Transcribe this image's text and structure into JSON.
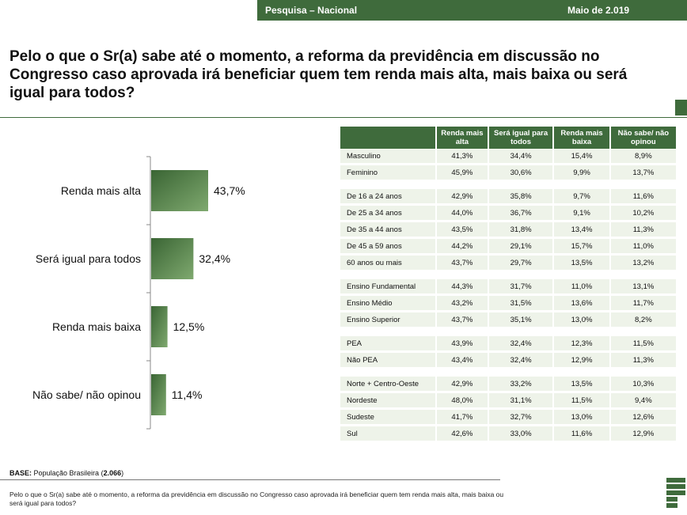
{
  "header": {
    "left": "Pesquisa – Nacional",
    "right": "Maio de 2.019"
  },
  "question": "Pelo o que o Sr(a) sabe até o momento, a reforma da previdência em discussão no Congresso caso aprovada irá beneficiar quem tem renda mais alta, mais baixa ou será igual para todos?",
  "base": {
    "label": "BASE:",
    "text": " População Brasileira (",
    "n": "2.066",
    "close": ")"
  },
  "footnote": "Pelo o que o Sr(a) sabe até o momento, a reforma da previdência em discussão no Congresso caso aprovada irá beneficiar quem tem renda mais alta, mais baixa ou será igual para todos?",
  "colors": {
    "accent": "#3f6b3c",
    "bar_dark": "#3a6534",
    "bar_light": "#7fa96f"
  },
  "chart_data": {
    "type": "bar",
    "orientation": "horizontal",
    "categories": [
      "Renda mais alta",
      "Será igual para todos",
      "Renda mais baixa",
      "Não sabe/ não opinou"
    ],
    "values": [
      43.7,
      32.4,
      12.5,
      11.4
    ],
    "value_labels": [
      "43,7%",
      "32,4%",
      "12,5%",
      "11,4%"
    ],
    "unit": "%"
  },
  "table": {
    "columns": [
      "",
      "Renda mais alta",
      "Será igual para todos",
      "Renda mais baixa",
      "Não sabe/ não opinou"
    ],
    "groups": [
      [
        [
          "Masculino",
          "41,3%",
          "34,4%",
          "15,4%",
          "8,9%"
        ],
        [
          "Feminino",
          "45,9%",
          "30,6%",
          "9,9%",
          "13,7%"
        ]
      ],
      [
        [
          "De 16 a 24 anos",
          "42,9%",
          "35,8%",
          "9,7%",
          "11,6%"
        ],
        [
          "De 25 a 34 anos",
          "44,0%",
          "36,7%",
          "9,1%",
          "10,2%"
        ],
        [
          "De 35 a 44 anos",
          "43,5%",
          "31,8%",
          "13,4%",
          "11,3%"
        ],
        [
          "De 45 a 59 anos",
          "44,2%",
          "29,1%",
          "15,7%",
          "11,0%"
        ],
        [
          "60 anos ou mais",
          "43,7%",
          "29,7%",
          "13,5%",
          "13,2%"
        ]
      ],
      [
        [
          "Ensino Fundamental",
          "44,3%",
          "31,7%",
          "11,0%",
          "13,1%"
        ],
        [
          "Ensino Médio",
          "43,2%",
          "31,5%",
          "13,6%",
          "11,7%"
        ],
        [
          "Ensino Superior",
          "43,7%",
          "35,1%",
          "13,0%",
          "8,2%"
        ]
      ],
      [
        [
          "PEA",
          "43,9%",
          "32,4%",
          "12,3%",
          "11,5%"
        ],
        [
          "Não PEA",
          "43,4%",
          "32,4%",
          "12,9%",
          "11,3%"
        ]
      ],
      [
        [
          "Norte + Centro-Oeste",
          "42,9%",
          "33,2%",
          "13,5%",
          "10,3%"
        ],
        [
          "Nordeste",
          "48,0%",
          "31,1%",
          "11,5%",
          "9,4%"
        ],
        [
          "Sudeste",
          "41,7%",
          "32,7%",
          "13,0%",
          "12,6%"
        ],
        [
          "Sul",
          "42,6%",
          "33,0%",
          "11,6%",
          "12,9%"
        ]
      ]
    ]
  }
}
